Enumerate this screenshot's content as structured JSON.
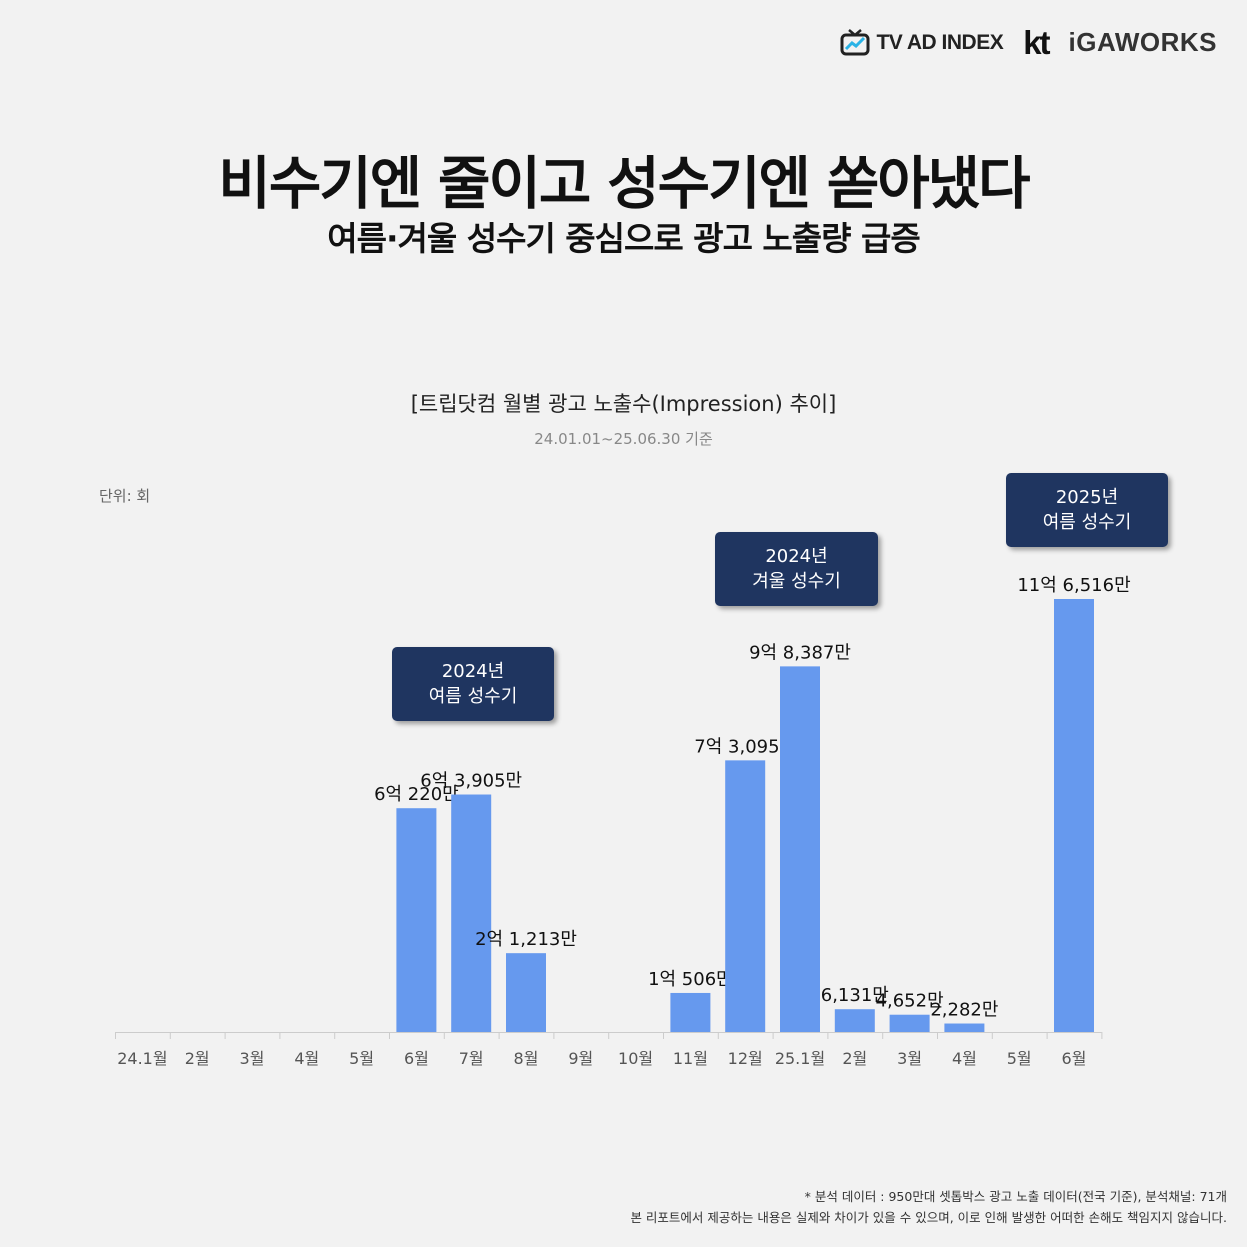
{
  "logos": {
    "tv_ad_index": "TV AD INDEX",
    "kt": "kt",
    "igaworks": "iGAWORKS"
  },
  "title": "비수기엔 줄이고 성수기엔 쏟아냈다",
  "subtitle": "여름·겨울 성수기 중심으로 광고 노출량 급증",
  "unit_label": "단위: 회",
  "callouts": [
    {
      "year": "2024년",
      "label": "여름 성수기"
    },
    {
      "year": "2024년",
      "label": "겨울 성수기"
    },
    {
      "year": "2025년",
      "label": "여름 성수기"
    }
  ],
  "footnote": {
    "line1": "* 분석 데이터 : 950만대 셋톱박스 광고 노출 데이터(전국 기준), 분석채널: 71개",
    "line2": "본 리포트에서 제공하는 내용은 실제와 차이가 있을 수 있으며, 이로 인해 발생한 어떠한 손해도 책임지지 않습니다."
  },
  "colors": {
    "bar": "#6699ee",
    "callout": "#1f3560",
    "background": "#f2f2f2",
    "axis": "#cccccc"
  },
  "chart_data": {
    "type": "bar",
    "title": "[트립닷컴 월별 광고 노출수(Impression) 추이]",
    "subtitle": "24.01.01~25.06.30 기준",
    "categories": [
      "24.1월",
      "2월",
      "3월",
      "4월",
      "5월",
      "6월",
      "7월",
      "8월",
      "9월",
      "10월",
      "11월",
      "12월",
      "25.1월",
      "2월",
      "3월",
      "4월",
      "5월",
      "6월"
    ],
    "values": [
      0,
      0,
      0,
      0,
      0,
      602200000,
      639050000,
      212130000,
      0,
      0,
      105060000,
      730950000,
      983870000,
      61310000,
      46520000,
      22820000,
      0,
      1165160000
    ],
    "data_labels": [
      "",
      "",
      "",
      "",
      "",
      "6억 220만",
      "6억 3,905만",
      "2억 1,213만",
      "",
      "",
      "1억 506만",
      "7억 3,095만",
      "9억 8,387만",
      "6,131만",
      "4,652만",
      "2,282만",
      "",
      "11억 6,516만"
    ],
    "ylim": [
      0,
      1200000000
    ],
    "grid": false,
    "legend": "none"
  }
}
